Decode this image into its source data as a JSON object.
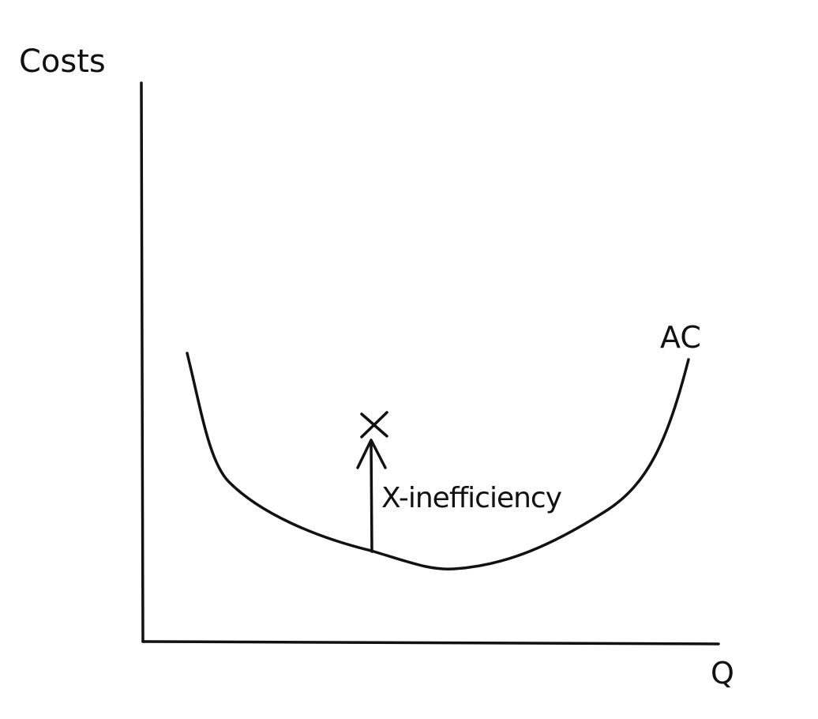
{
  "diagram": {
    "y_axis_label": "Costs",
    "x_axis_label": "Q",
    "curve_label": "AC",
    "annotation_label": "X-inefficiency",
    "point_marker": "x-mark",
    "arrow": "up-arrow",
    "ink_color": "#111111"
  }
}
